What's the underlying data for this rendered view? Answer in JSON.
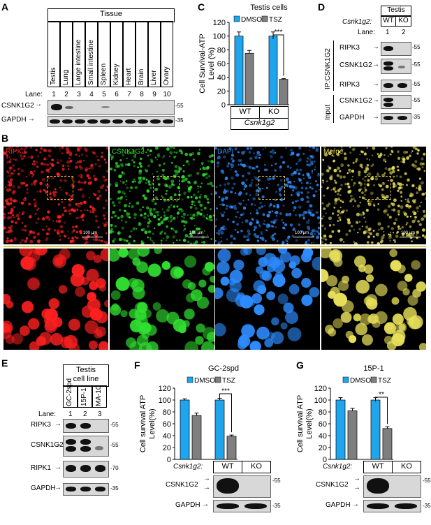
{
  "panel_labels": {
    "a": "A",
    "b": "B",
    "c": "C",
    "d": "D",
    "e": "E",
    "f": "F",
    "g": "G"
  },
  "panelA": {
    "header": "Tissue",
    "tissues": [
      "Testis",
      "Lung",
      "Large intestine",
      "Small intestine",
      "Spleen",
      "Kidney",
      "Heart",
      "Brain",
      "Liver",
      "Ovary"
    ],
    "lane_label": "Lane:",
    "lanes": [
      "1",
      "2",
      "3",
      "4",
      "5",
      "6",
      "7",
      "8",
      "9",
      "10"
    ],
    "rows": [
      "CSNK1G2",
      "GAPDH"
    ],
    "mw": [
      "-55",
      "-35"
    ]
  },
  "panelB": {
    "stains": [
      "RIPK3",
      "CSNK1G2",
      "DAPI",
      "Merge"
    ],
    "stain_colors": [
      "#ff2020",
      "#30e030",
      "#2d8cff",
      "#e8e05a"
    ],
    "scale_text": "100 µm"
  },
  "panelC": {
    "title": "Testis cells",
    "ylabel_line1": "Cell Survival-ATP",
    "ylabel_line2": "Level (%)",
    "sig": "***",
    "groups": [
      "WT",
      "KO"
    ],
    "gene": "Csnk1g2"
  },
  "panelD": {
    "header": "Testis",
    "genotype_label": "Csnk1g2:",
    "genotypes": [
      "WT",
      "KO"
    ],
    "lane_label": "Lane:",
    "lanes": [
      "1",
      "2"
    ],
    "ip_label": "IP:CSNK1G2",
    "input_label": "Input",
    "rows": [
      "RIPK3",
      "CSNK1G2",
      "RIPK3",
      "CSNK1G2",
      "GAPDH"
    ],
    "mw": [
      "-55",
      "-55",
      "-55",
      "-55",
      "-35"
    ]
  },
  "panelE": {
    "header_line1": "Testis",
    "header_line2": "cell line",
    "lines": [
      "GC-2spd",
      "15P-1",
      "MA-10"
    ],
    "lane_label": "Lane:",
    "lanes": [
      "1",
      "2",
      "3"
    ],
    "rows": [
      "RIPK3",
      "CSNK1G2",
      "RIPK1",
      "GAPDH"
    ],
    "mw": [
      "-55",
      "-55",
      "-70",
      "-35"
    ]
  },
  "panelF": {
    "title": "GC-2spd",
    "ylabel_line1": "Cell survival ATP",
    "ylabel_line2": "Level(%)",
    "sig": "***",
    "genotype_label": "Csnk1g2:",
    "groups": [
      "WT",
      "KO"
    ],
    "rows": [
      "CSNK1G2",
      "GAPDH"
    ],
    "mw": [
      "-55",
      "-35"
    ]
  },
  "panelG": {
    "title": "15P-1",
    "ylabel_line1": "Cell survival ATP",
    "ylabel_line2": "Level(%)",
    "sig": "**",
    "genotype_label": "Csnk1g2:",
    "groups": [
      "WT",
      "KO"
    ],
    "rows": [
      "CSNK1G2",
      "GAPDH"
    ],
    "mw": [
      "-55",
      "-35"
    ]
  },
  "chart_data": [
    {
      "type": "bar",
      "panel": "C",
      "title": "Testis cells",
      "categories": [
        "WT",
        "KO"
      ],
      "series": [
        {
          "name": "DMSO",
          "values": [
            100,
            100
          ],
          "errors": [
            6,
            6
          ],
          "color": "#1ea5ee"
        },
        {
          "name": "TSZ",
          "values": [
            75,
            37
          ],
          "errors": [
            4,
            1
          ],
          "color": "#7f7f7f"
        }
      ],
      "ylabel": "Cell Survival-ATP Level (%)",
      "ylim": [
        0,
        120
      ],
      "yticks": [
        0,
        20,
        40,
        60,
        80,
        100,
        120
      ]
    },
    {
      "type": "bar",
      "panel": "F",
      "title": "GC-2spd",
      "categories": [
        "WT",
        "KO"
      ],
      "series": [
        {
          "name": "DMSO",
          "values": [
            100,
            100
          ],
          "errors": [
            2,
            3
          ],
          "color": "#1ea5ee"
        },
        {
          "name": "TSZ",
          "values": [
            74,
            39
          ],
          "errors": [
            4,
            2
          ],
          "color": "#7f7f7f"
        }
      ],
      "ylabel": "Cell survival ATP Level(%)",
      "ylim": [
        0,
        120
      ],
      "yticks": [
        0,
        20,
        40,
        60,
        80,
        100,
        120
      ]
    },
    {
      "type": "bar",
      "panel": "G",
      "title": "15P-1",
      "categories": [
        "WT",
        "KO"
      ],
      "series": [
        {
          "name": "DMSO",
          "values": [
            100,
            100
          ],
          "errors": [
            4,
            4
          ],
          "color": "#1ea5ee"
        },
        {
          "name": "TSZ",
          "values": [
            82,
            52
          ],
          "errors": [
            4,
            3
          ],
          "color": "#7f7f7f"
        }
      ],
      "ylabel": "Cell survival ATP Level(%)",
      "ylim": [
        0,
        120
      ],
      "yticks": [
        0,
        20,
        40,
        60,
        80,
        100,
        120
      ]
    }
  ]
}
